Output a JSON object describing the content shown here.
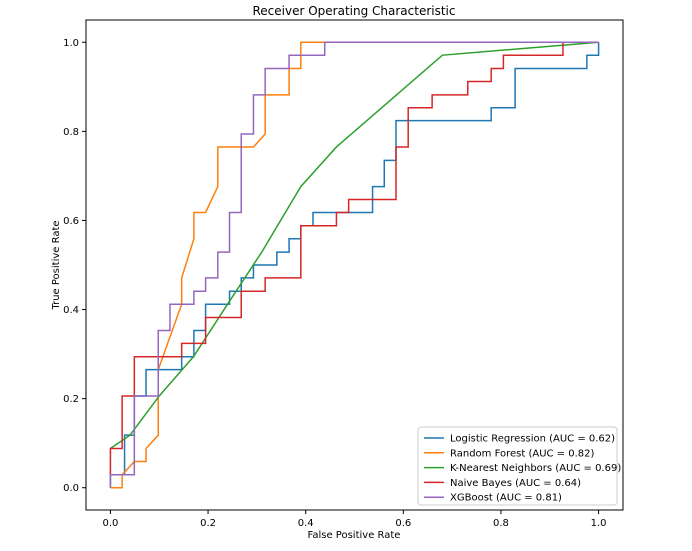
{
  "chart_data": {
    "type": "line",
    "title": "Receiver Operating Characteristic",
    "xlabel": "False Positive Rate",
    "ylabel": "True Positive Rate",
    "xlim": [
      -0.05,
      1.05
    ],
    "ylim": [
      -0.05,
      1.05
    ],
    "grid": false,
    "legend_position": "lower-right",
    "xticks": [
      "0.0",
      "0.2",
      "0.4",
      "0.6",
      "0.8",
      "1.0"
    ],
    "yticks": [
      "0.0",
      "0.2",
      "0.4",
      "0.6",
      "0.8",
      "1.0"
    ],
    "series": [
      {
        "name": "Logistic Regression (AUC = 0.62)",
        "color": "#1f77b4",
        "points": [
          [
            0,
            0
          ],
          [
            0,
            0.029
          ],
          [
            0.029,
            0.029
          ],
          [
            0.029,
            0.118
          ],
          [
            0.049,
            0.118
          ],
          [
            0.049,
            0.206
          ],
          [
            0.073,
            0.206
          ],
          [
            0.073,
            0.265
          ],
          [
            0.146,
            0.265
          ],
          [
            0.146,
            0.294
          ],
          [
            0.171,
            0.294
          ],
          [
            0.171,
            0.353
          ],
          [
            0.195,
            0.353
          ],
          [
            0.195,
            0.412
          ],
          [
            0.244,
            0.412
          ],
          [
            0.244,
            0.441
          ],
          [
            0.268,
            0.441
          ],
          [
            0.268,
            0.471
          ],
          [
            0.293,
            0.471
          ],
          [
            0.293,
            0.5
          ],
          [
            0.341,
            0.5
          ],
          [
            0.341,
            0.529
          ],
          [
            0.366,
            0.529
          ],
          [
            0.366,
            0.559
          ],
          [
            0.39,
            0.559
          ],
          [
            0.39,
            0.588
          ],
          [
            0.415,
            0.588
          ],
          [
            0.415,
            0.618
          ],
          [
            0.537,
            0.618
          ],
          [
            0.537,
            0.676
          ],
          [
            0.561,
            0.676
          ],
          [
            0.561,
            0.735
          ],
          [
            0.585,
            0.735
          ],
          [
            0.585,
            0.824
          ],
          [
            0.78,
            0.824
          ],
          [
            0.78,
            0.853
          ],
          [
            0.829,
            0.853
          ],
          [
            0.829,
            0.941
          ],
          [
            0.976,
            0.941
          ],
          [
            0.976,
            0.971
          ],
          [
            1,
            0.971
          ],
          [
            1,
            1
          ]
        ]
      },
      {
        "name": "Random Forest (AUC = 0.82)",
        "color": "#ff7f0e",
        "points": [
          [
            0,
            0
          ],
          [
            0.024,
            0
          ],
          [
            0.024,
            0.029
          ],
          [
            0.049,
            0.059
          ],
          [
            0.073,
            0.059
          ],
          [
            0.073,
            0.088
          ],
          [
            0.098,
            0.118
          ],
          [
            0.098,
            0.265
          ],
          [
            0.146,
            0.412
          ],
          [
            0.146,
            0.471
          ],
          [
            0.171,
            0.559
          ],
          [
            0.171,
            0.618
          ],
          [
            0.195,
            0.618
          ],
          [
            0.22,
            0.676
          ],
          [
            0.22,
            0.765
          ],
          [
            0.293,
            0.765
          ],
          [
            0.317,
            0.794
          ],
          [
            0.317,
            0.882
          ],
          [
            0.366,
            0.882
          ],
          [
            0.366,
            0.941
          ],
          [
            0.39,
            0.941
          ],
          [
            0.39,
            1
          ],
          [
            1,
            1
          ]
        ]
      },
      {
        "name": "K-Nearest Neighbors (AUC = 0.69)",
        "color": "#2ca02c",
        "points": [
          [
            0,
            0.088
          ],
          [
            0.04,
            0.118
          ],
          [
            0.1,
            0.206
          ],
          [
            0.17,
            0.294
          ],
          [
            0.24,
            0.412
          ],
          [
            0.31,
            0.529
          ],
          [
            0.39,
            0.676
          ],
          [
            0.463,
            0.765
          ],
          [
            0.68,
            0.971
          ],
          [
            1,
            1
          ]
        ]
      },
      {
        "name": "Naive Bayes (AUC = 0.64)",
        "color": "#d62728",
        "points": [
          [
            0,
            0.029
          ],
          [
            0,
            0.088
          ],
          [
            0.024,
            0.088
          ],
          [
            0.024,
            0.206
          ],
          [
            0.049,
            0.206
          ],
          [
            0.049,
            0.294
          ],
          [
            0.146,
            0.294
          ],
          [
            0.146,
            0.324
          ],
          [
            0.195,
            0.324
          ],
          [
            0.195,
            0.382
          ],
          [
            0.268,
            0.382
          ],
          [
            0.268,
            0.441
          ],
          [
            0.317,
            0.441
          ],
          [
            0.317,
            0.471
          ],
          [
            0.39,
            0.471
          ],
          [
            0.39,
            0.588
          ],
          [
            0.463,
            0.588
          ],
          [
            0.463,
            0.618
          ],
          [
            0.488,
            0.618
          ],
          [
            0.488,
            0.647
          ],
          [
            0.585,
            0.647
          ],
          [
            0.585,
            0.765
          ],
          [
            0.61,
            0.765
          ],
          [
            0.61,
            0.853
          ],
          [
            0.659,
            0.853
          ],
          [
            0.659,
            0.882
          ],
          [
            0.732,
            0.882
          ],
          [
            0.732,
            0.912
          ],
          [
            0.78,
            0.912
          ],
          [
            0.78,
            0.941
          ],
          [
            0.805,
            0.941
          ],
          [
            0.805,
            0.971
          ],
          [
            0.927,
            0.971
          ],
          [
            0.927,
            1
          ],
          [
            1,
            1
          ]
        ]
      },
      {
        "name": "XGBoost (AUC = 0.81)",
        "color": "#9467bd",
        "points": [
          [
            0,
            0
          ],
          [
            0,
            0.029
          ],
          [
            0.049,
            0.029
          ],
          [
            0.049,
            0.206
          ],
          [
            0.098,
            0.206
          ],
          [
            0.098,
            0.353
          ],
          [
            0.122,
            0.353
          ],
          [
            0.122,
            0.412
          ],
          [
            0.171,
            0.412
          ],
          [
            0.171,
            0.441
          ],
          [
            0.195,
            0.441
          ],
          [
            0.195,
            0.471
          ],
          [
            0.22,
            0.471
          ],
          [
            0.22,
            0.529
          ],
          [
            0.244,
            0.529
          ],
          [
            0.244,
            0.618
          ],
          [
            0.268,
            0.618
          ],
          [
            0.268,
            0.794
          ],
          [
            0.293,
            0.794
          ],
          [
            0.293,
            0.882
          ],
          [
            0.317,
            0.882
          ],
          [
            0.317,
            0.941
          ],
          [
            0.366,
            0.941
          ],
          [
            0.366,
            0.971
          ],
          [
            0.439,
            0.971
          ],
          [
            0.439,
            1
          ],
          [
            1,
            1
          ]
        ]
      }
    ]
  }
}
